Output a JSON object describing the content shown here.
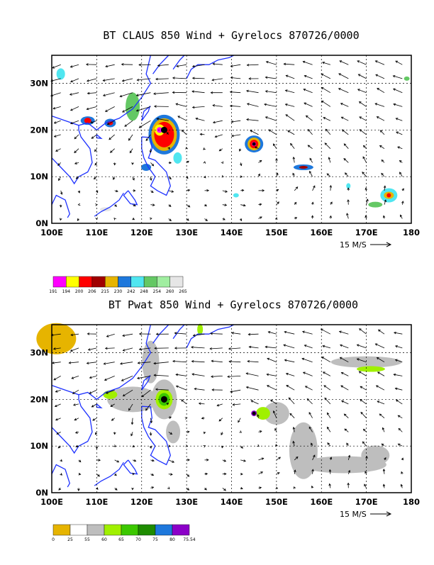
{
  "chart_data": [
    {
      "type": "vector-field-map",
      "title": "BT CLAUS 850 Wind + Gyrelocs 870726/0000",
      "x_ticks": [
        "100E",
        "110E",
        "120E",
        "130E",
        "140E",
        "150E",
        "160E",
        "170E",
        "180"
      ],
      "y_ticks": [
        "0N",
        "10N",
        "20N",
        "30N"
      ],
      "xlim": [
        100,
        180
      ],
      "ylim": [
        0,
        36
      ],
      "grid": true,
      "vector_scale_label": "15 M/S",
      "colorbar_labels": [
        "191",
        "194",
        "200",
        "206",
        "215",
        "230",
        "242",
        "248",
        "254",
        "260",
        "265"
      ],
      "colorbar_colors": [
        "#ff00ff",
        "#ffff00",
        "#ff0000",
        "#a00000",
        "#e6b400",
        "#1e78dc",
        "#50e6f0",
        "#64c864",
        "#a0eea0",
        "#e6e6e6"
      ],
      "gyrelocs": [
        [
          125,
          20
        ],
        [
          145,
          17
        ]
      ]
    },
    {
      "type": "vector-field-map",
      "title": "BT Pwat 850 Wind + Gyrelocs 870726/0000",
      "x_ticks": [
        "100E",
        "110E",
        "120E",
        "130E",
        "140E",
        "150E",
        "160E",
        "170E",
        "180"
      ],
      "y_ticks": [
        "0N",
        "10N",
        "20N",
        "30N"
      ],
      "xlim": [
        100,
        180
      ],
      "ylim": [
        0,
        36
      ],
      "grid": true,
      "vector_scale_label": "15 M/S",
      "colorbar_labels": [
        "0",
        "25",
        "55",
        "60",
        "65",
        "70",
        "75",
        "80",
        "75.54"
      ],
      "colorbar_colors": [
        "#e6b400",
        "#ffffff",
        "#bebebe",
        "#a0f000",
        "#3cc800",
        "#1e8c00",
        "#1e78dc",
        "#8c00c8"
      ],
      "gyrelocs": [
        [
          125,
          20
        ],
        [
          145,
          17
        ]
      ]
    }
  ]
}
